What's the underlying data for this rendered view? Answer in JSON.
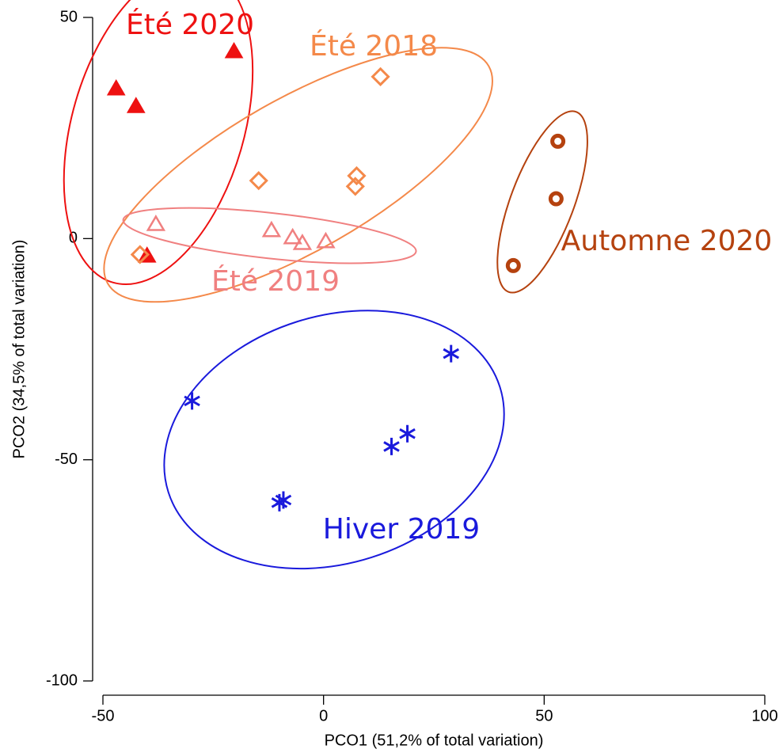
{
  "chart_data": {
    "type": "scatter",
    "x_label": "PCO1 (51,2% of total variation)",
    "y_label": "PCO2 (34,5% of total variation)",
    "xlim": [
      -50,
      100
    ],
    "xticks": [
      -50,
      0,
      50,
      100
    ],
    "ylim": [
      -100,
      50
    ],
    "yticks": [
      -100,
      -50,
      0,
      50
    ],
    "series": [
      {
        "name": "Été 2020",
        "color": "#ee1111",
        "marker": "filled-triangle",
        "x": [
          -47,
          -42.5,
          -20.3,
          -40
        ],
        "values": [
          33.9,
          29.9,
          42.3,
          -3.9
        ]
      },
      {
        "name": "Été 2018",
        "color": "#f4894a",
        "marker": "diamond",
        "x": [
          12.9,
          -14.7,
          7.5,
          7.2,
          -41.6
        ],
        "values": [
          36.6,
          13.1,
          14.2,
          11.8,
          -3.6
        ]
      },
      {
        "name": "Été 2019",
        "color": "#f08080",
        "marker": "open-triangle",
        "x": [
          -38,
          -11.8,
          -7,
          -4.8,
          0.5
        ],
        "values": [
          3.2,
          1.8,
          0.2,
          -1.1,
          -0.7
        ]
      },
      {
        "name": "Automne 2020",
        "color": "#b5420f",
        "marker": "circle",
        "x": [
          53.1,
          52.7,
          43
        ],
        "values": [
          22,
          9,
          -6.1
        ]
      },
      {
        "name": "Hiver 2019",
        "color": "#1a1adc",
        "marker": "asterisk",
        "x": [
          -29.8,
          28.9,
          19,
          15.4,
          -9.1,
          -10
        ],
        "values": [
          -36.7,
          -26,
          -44.1,
          -47,
          -59.1,
          -59.7
        ]
      }
    ]
  }
}
